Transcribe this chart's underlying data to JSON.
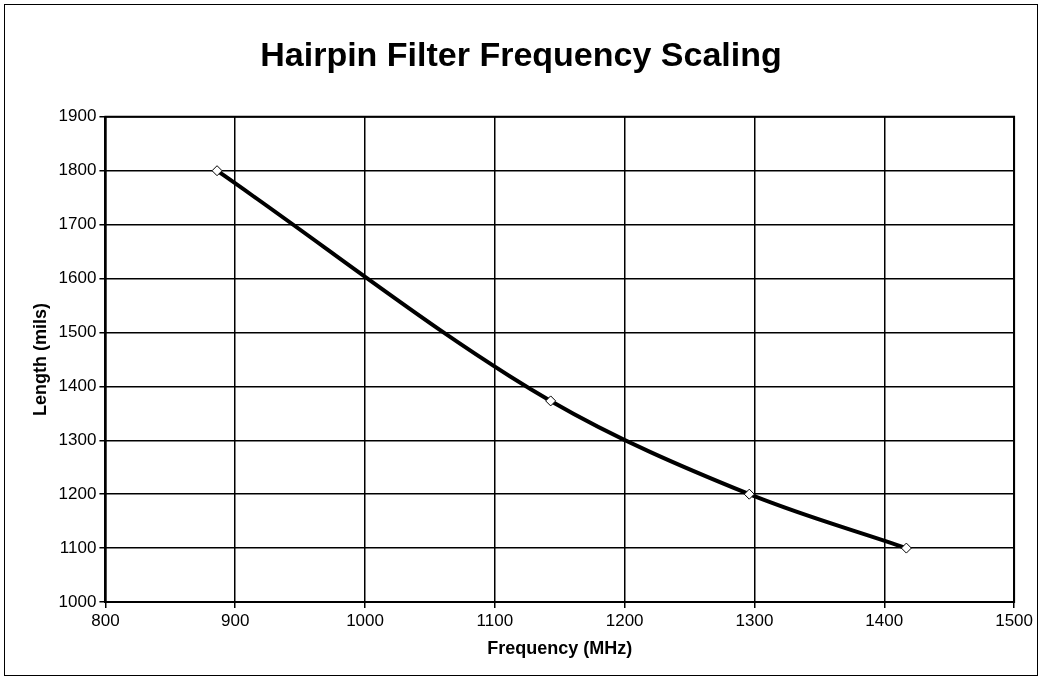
{
  "chart_data": {
    "type": "line",
    "title": "Hairpin Filter Frequency Scaling",
    "xlabel": "Frequency (MHz)",
    "ylabel": "Length (mils)",
    "x": [
      886,
      1143,
      1296,
      1417
    ],
    "series": [
      {
        "color": "#000000",
        "values": [
          1800,
          1373,
          1200,
          1100
        ]
      }
    ],
    "xlim": [
      800,
      1500
    ],
    "xticks": [
      800,
      900,
      1000,
      1100,
      1200,
      1300,
      1400,
      1500
    ],
    "ylim": [
      1000,
      1900
    ],
    "yticks": [
      1000,
      1100,
      1200,
      1300,
      1400,
      1500,
      1600,
      1700,
      1800,
      1900
    ],
    "grid": true,
    "legend": false,
    "marker": "diamond",
    "line_style": "solid"
  }
}
